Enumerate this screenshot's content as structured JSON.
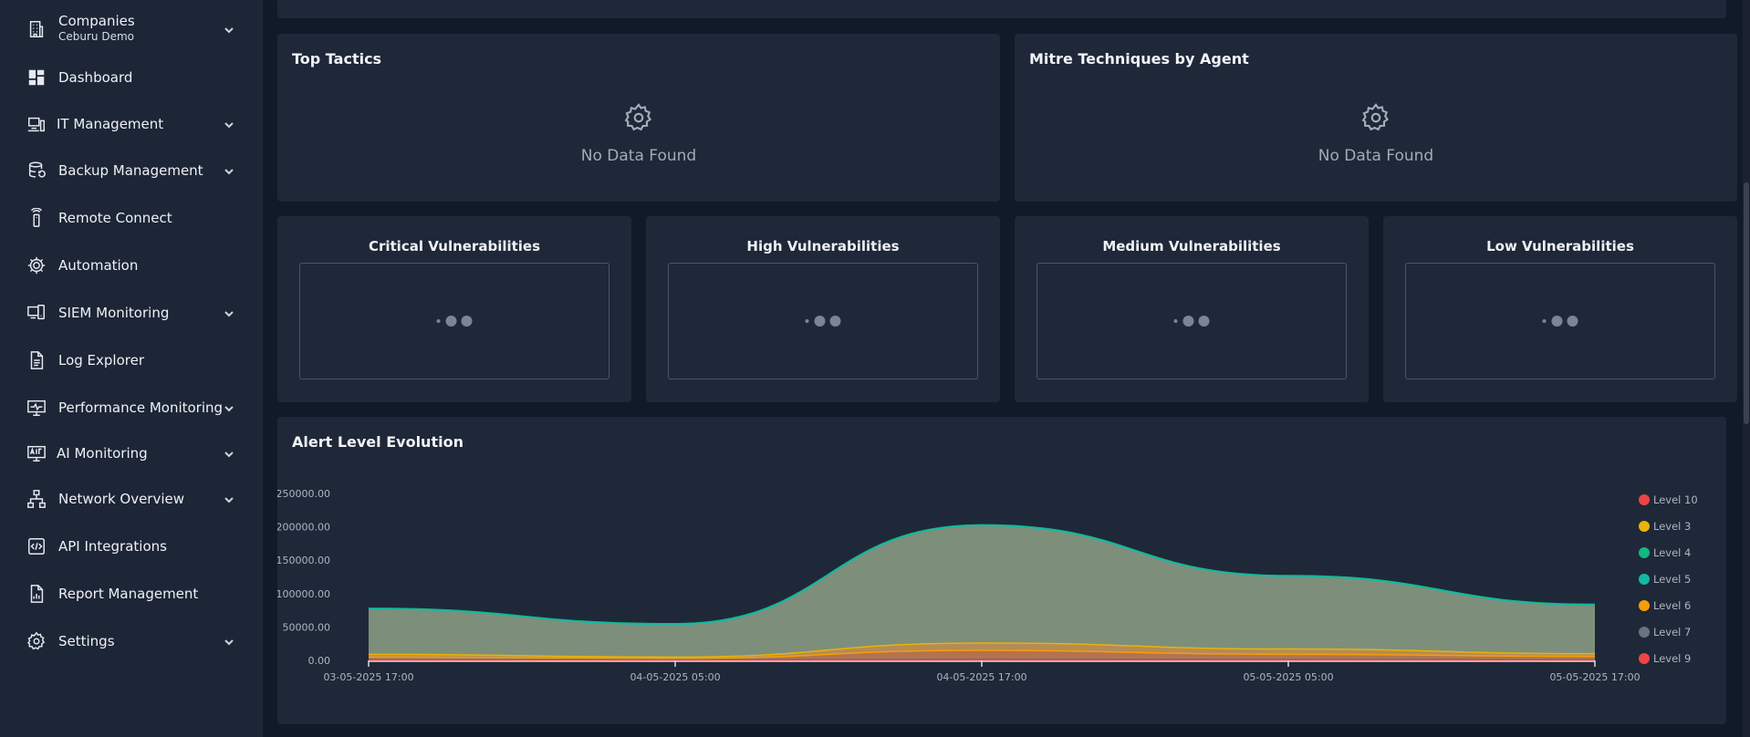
{
  "sidebar": {
    "items": [
      {
        "label": "Companies",
        "sublabel": "Ceburu Demo",
        "icon": "building-icon",
        "has_chevron": true
      },
      {
        "label": "Dashboard",
        "icon": "dashboard-icon",
        "has_chevron": false
      },
      {
        "label": "IT Management",
        "icon": "it-management-icon",
        "has_chevron": true
      },
      {
        "label": "Backup Management",
        "icon": "database-backup-icon",
        "has_chevron": true
      },
      {
        "label": "Remote Connect",
        "icon": "remote-icon",
        "has_chevron": false
      },
      {
        "label": "Automation",
        "icon": "automation-gear-icon",
        "has_chevron": false
      },
      {
        "label": "SIEM Monitoring",
        "icon": "siem-devices-icon",
        "has_chevron": true
      },
      {
        "label": "Log Explorer",
        "icon": "document-icon",
        "has_chevron": false
      },
      {
        "label": "Performance Monitoring",
        "icon": "monitor-pulse-icon",
        "has_chevron": true
      },
      {
        "label": "AI Monitoring",
        "icon": "ai-monitor-icon",
        "has_chevron": true
      },
      {
        "label": "Network Overview",
        "icon": "network-icon",
        "has_chevron": true
      },
      {
        "label": "API Integrations",
        "icon": "api-icon",
        "has_chevron": false
      },
      {
        "label": "Report Management",
        "icon": "report-icon",
        "has_chevron": false
      },
      {
        "label": "Settings",
        "icon": "settings-gear-icon",
        "has_chevron": true
      }
    ]
  },
  "top_tactics": {
    "title": "Top Tactics",
    "empty_text": "No Data Found"
  },
  "mitre": {
    "title": "Mitre Techniques by Agent",
    "empty_text": "No Data Found"
  },
  "vulnerabilities": [
    {
      "title": "Critical Vulnerabilities"
    },
    {
      "title": "High Vulnerabilities"
    },
    {
      "title": "Medium Vulnerabilities"
    },
    {
      "title": "Low Vulnerabilities"
    }
  ],
  "alert_chart": {
    "title": "Alert Level Evolution"
  },
  "chart_data": {
    "type": "area",
    "title": "Alert Level Evolution",
    "x": [
      "03-05-2025 17:00",
      "04-05-2025 05:00",
      "04-05-2025 17:00",
      "05-05-2025 05:00",
      "05-05-2025 17:00"
    ],
    "y_ticks": [
      "250000.00",
      "200000.00",
      "150000.00",
      "100000.00",
      "50000.00",
      "0.00"
    ],
    "ylim": [
      0,
      250000
    ],
    "legend_position": "right",
    "series": [
      {
        "name": "Level 10",
        "color": "#ef4444",
        "values": [
          500,
          300,
          1000,
          600,
          400
        ]
      },
      {
        "name": "Level 3",
        "color": "#eab308",
        "values": [
          9000,
          5000,
          26000,
          17000,
          10000
        ]
      },
      {
        "name": "Level 4",
        "color": "#10b981",
        "values": [
          78000,
          55000,
          203000,
          127000,
          84000
        ]
      },
      {
        "name": "Level 5",
        "color": "#14b8a6",
        "values": [
          77000,
          54000,
          202000,
          126000,
          83000
        ]
      },
      {
        "name": "Level 6",
        "color": "#f59e0b",
        "values": [
          5000,
          3000,
          15000,
          9000,
          6000
        ]
      },
      {
        "name": "Level 7",
        "color": "#6b7280",
        "values": [
          1000,
          800,
          2000,
          1500,
          1000
        ]
      },
      {
        "name": "Level 9",
        "color": "#ef4444",
        "values": [
          200,
          100,
          400,
          300,
          200
        ]
      }
    ]
  }
}
